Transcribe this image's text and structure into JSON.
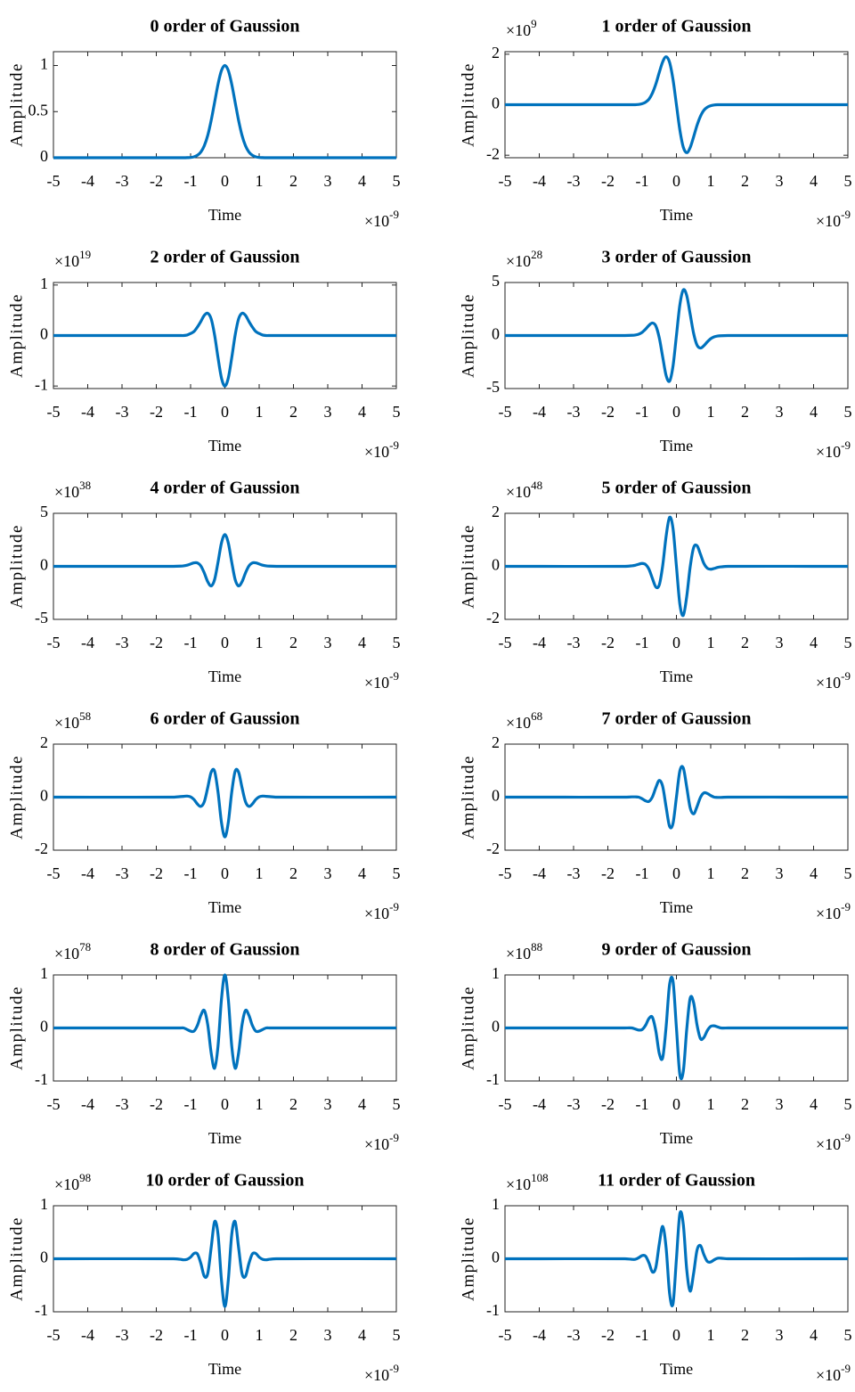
{
  "chart_data": [
    {
      "type": "line",
      "title": "0 order of Gaussion",
      "xlabel": "Time",
      "ylabel": "Amplitude",
      "x_multiplier": "×10",
      "x_exponent": "-9",
      "color": "#0072bd",
      "xlim": [
        -5,
        5
      ],
      "xticks": [
        -5,
        -4,
        -3,
        -2,
        -1,
        0,
        1,
        2,
        3,
        4,
        5
      ],
      "ylim": [
        0,
        1.15
      ],
      "yticks": [
        0,
        0.5,
        1
      ],
      "x": [
        -5,
        -1.5,
        -1.3,
        -1.2,
        -1.1,
        -1,
        -0.9,
        -0.8,
        -0.7,
        -0.6,
        -0.5,
        -0.4,
        -0.3,
        -0.2,
        -0.1,
        0,
        0.1,
        0.2,
        0.3,
        0.4,
        0.5,
        0.6,
        0.7,
        0.8,
        0.9,
        1,
        1.1,
        1.2,
        1.3,
        1.5,
        5
      ],
      "values": [
        0,
        0,
        0,
        0,
        0.001,
        0.003,
        0.01,
        0.027,
        0.062,
        0.13,
        0.242,
        0.404,
        0.6,
        0.797,
        0.945,
        1,
        0.945,
        0.797,
        0.6,
        0.404,
        0.242,
        0.13,
        0.062,
        0.027,
        0.01,
        0.003,
        0.001,
        0,
        0,
        0,
        0
      ]
    },
    {
      "type": "line",
      "title": "1 order of Gaussion",
      "xlabel": "Time",
      "ylabel": "Amplitude",
      "x_multiplier": "×10",
      "x_exponent": "-9",
      "y_multiplier": "×10",
      "y_exponent": "9",
      "color": "#0072bd",
      "xlim": [
        -5,
        5
      ],
      "xticks": [
        -5,
        -4,
        -3,
        -2,
        -1,
        0,
        1,
        2,
        3,
        4,
        5
      ],
      "ylim": [
        -2.1,
        2.1
      ],
      "yticks": [
        -2,
        0,
        2
      ],
      "x": [
        -5,
        -1.5,
        -1.3,
        -1.2,
        -1.1,
        -1,
        -0.9,
        -0.8,
        -0.7,
        -0.6,
        -0.5,
        -0.4,
        -0.3,
        -0.2,
        -0.1,
        0,
        0.1,
        0.2,
        0.3,
        0.4,
        0.5,
        0.6,
        0.7,
        0.8,
        0.9,
        1,
        1.1,
        1.2,
        1.3,
        1.5,
        5
      ],
      "values": [
        0,
        0,
        0,
        0,
        0.01,
        0.04,
        0.1,
        0.22,
        0.46,
        0.82,
        1.28,
        1.7,
        1.9,
        1.68,
        1,
        0,
        -1,
        -1.68,
        -1.9,
        -1.7,
        -1.28,
        -0.82,
        -0.46,
        -0.22,
        -0.1,
        -0.04,
        -0.01,
        0,
        0,
        0,
        0
      ]
    },
    {
      "type": "line",
      "title": "2 order of Gaussion",
      "xlabel": "Time",
      "ylabel": "Amplitude",
      "x_multiplier": "×10",
      "x_exponent": "-9",
      "y_multiplier": "×10",
      "y_exponent": "19",
      "color": "#0072bd",
      "xlim": [
        -5,
        5
      ],
      "xticks": [
        -5,
        -4,
        -3,
        -2,
        -1,
        0,
        1,
        2,
        3,
        4,
        5
      ],
      "ylim": [
        -1.05,
        1.05
      ],
      "yticks": [
        -1,
        0,
        1
      ],
      "x": [
        -5,
        -1.5,
        -1.3,
        -1.2,
        -1.1,
        -1,
        -0.9,
        -0.8,
        -0.7,
        -0.6,
        -0.5,
        -0.4,
        -0.3,
        -0.2,
        -0.1,
        0,
        0.1,
        0.2,
        0.3,
        0.4,
        0.5,
        0.6,
        0.7,
        0.8,
        0.9,
        1,
        1.1,
        1.2,
        1.3,
        1.5,
        5
      ],
      "values": [
        0,
        0,
        0,
        0,
        0.01,
        0.04,
        0.08,
        0.17,
        0.28,
        0.4,
        0.44,
        0.33,
        0.01,
        -0.44,
        -0.84,
        -1,
        -0.84,
        -0.44,
        0.01,
        0.33,
        0.44,
        0.4,
        0.28,
        0.17,
        0.08,
        0.04,
        0.01,
        0,
        0,
        0,
        0
      ]
    },
    {
      "type": "line",
      "title": "3 order of Gaussion",
      "xlabel": "Time",
      "ylabel": "Amplitude",
      "x_multiplier": "×10",
      "x_exponent": "-9",
      "y_multiplier": "×10",
      "y_exponent": "28",
      "color": "#0072bd",
      "xlim": [
        -5,
        5
      ],
      "xticks": [
        -5,
        -4,
        -3,
        -2,
        -1,
        0,
        1,
        2,
        3,
        4,
        5
      ],
      "ylim": [
        -5,
        5
      ],
      "yticks": [
        -5,
        0,
        5
      ],
      "x": [
        -5,
        -1.5,
        -1.3,
        -1.2,
        -1.1,
        -1,
        -0.9,
        -0.8,
        -0.7,
        -0.6,
        -0.5,
        -0.4,
        -0.3,
        -0.2,
        -0.1,
        0,
        0.1,
        0.2,
        0.3,
        0.4,
        0.5,
        0.6,
        0.7,
        0.8,
        0.9,
        1,
        1.1,
        1.2,
        1.3,
        1.5,
        5
      ],
      "values": [
        0,
        0,
        0.02,
        0.05,
        0.13,
        0.3,
        0.6,
        0.96,
        1.18,
        0.9,
        -0.22,
        -2.03,
        -3.78,
        -4.3,
        -2.89,
        0,
        2.89,
        4.3,
        3.78,
        2.03,
        0.22,
        -0.9,
        -1.18,
        -0.96,
        -0.6,
        -0.3,
        -0.13,
        -0.05,
        -0.02,
        0,
        0
      ]
    },
    {
      "type": "line",
      "title": "4 order of Gaussion",
      "xlabel": "Time",
      "ylabel": "Amplitude",
      "x_multiplier": "×10",
      "x_exponent": "-9",
      "y_multiplier": "×10",
      "y_exponent": "38",
      "color": "#0072bd",
      "xlim": [
        -5,
        5
      ],
      "xticks": [
        -5,
        -4,
        -3,
        -2,
        -1,
        0,
        1,
        2,
        3,
        4,
        5
      ],
      "ylim": [
        -5,
        5
      ],
      "yticks": [
        -5,
        0,
        5
      ],
      "x": [
        -5,
        -1.5,
        -1.3,
        -1.2,
        -1.1,
        -1,
        -0.9,
        -0.8,
        -0.7,
        -0.6,
        -0.5,
        -0.4,
        -0.3,
        -0.2,
        -0.1,
        0,
        0.1,
        0.2,
        0.3,
        0.4,
        0.5,
        0.6,
        0.7,
        0.8,
        0.9,
        1,
        1.1,
        1.2,
        1.3,
        1.5,
        5
      ],
      "values": [
        0,
        0,
        0.02,
        0.05,
        0.11,
        0.22,
        0.33,
        0.32,
        0.03,
        -0.63,
        -1.45,
        -1.85,
        -1.25,
        0.39,
        2.2,
        3,
        2.2,
        0.39,
        -1.25,
        -1.85,
        -1.45,
        -0.63,
        0.03,
        0.32,
        0.33,
        0.22,
        0.11,
        0.05,
        0.02,
        0,
        0
      ]
    },
    {
      "type": "line",
      "title": "5 order of Gaussion",
      "xlabel": "Time",
      "ylabel": "Amplitude",
      "x_multiplier": "×10",
      "x_exponent": "-9",
      "y_multiplier": "×10",
      "y_exponent": "48",
      "color": "#0072bd",
      "xlim": [
        -5,
        5
      ],
      "xticks": [
        -5,
        -4,
        -3,
        -2,
        -1,
        0,
        1,
        2,
        3,
        4,
        5
      ],
      "ylim": [
        -2,
        2
      ],
      "yticks": [
        -2,
        0,
        2
      ],
      "x": [
        -5,
        -1.5,
        -1.3,
        -1.2,
        -1.1,
        -1,
        -0.9,
        -0.8,
        -0.7,
        -0.6,
        -0.5,
        -0.4,
        -0.3,
        -0.2,
        -0.1,
        0,
        0.1,
        0.2,
        0.3,
        0.4,
        0.5,
        0.6,
        0.7,
        0.8,
        0.9,
        1,
        1.1,
        1.2,
        1.3,
        1.5,
        5
      ],
      "values": [
        0,
        0,
        0.02,
        0.04,
        0.08,
        0.11,
        0.07,
        -0.11,
        -0.46,
        -0.78,
        -0.7,
        0.03,
        1.14,
        1.85,
        1.43,
        0,
        -1.43,
        -1.85,
        -1.14,
        -0.03,
        0.7,
        0.78,
        0.46,
        0.11,
        -0.07,
        -0.11,
        -0.08,
        -0.04,
        -0.02,
        0,
        0
      ]
    },
    {
      "type": "line",
      "title": "6 order of Gaussion",
      "xlabel": "Time",
      "ylabel": "Amplitude",
      "x_multiplier": "×10",
      "x_exponent": "-9",
      "y_multiplier": "×10",
      "y_exponent": "58",
      "color": "#0072bd",
      "xlim": [
        -5,
        5
      ],
      "xticks": [
        -5,
        -4,
        -3,
        -2,
        -1,
        0,
        1,
        2,
        3,
        4,
        5
      ],
      "ylim": [
        -2,
        2
      ],
      "yticks": [
        -2,
        0,
        2
      ],
      "x": [
        -5,
        -1.5,
        -1.3,
        -1.2,
        -1.1,
        -1,
        -0.9,
        -0.8,
        -0.7,
        -0.6,
        -0.5,
        -0.4,
        -0.3,
        -0.2,
        -0.1,
        0,
        0.1,
        0.2,
        0.3,
        0.4,
        0.5,
        0.6,
        0.7,
        0.8,
        0.9,
        1,
        1.1,
        1.2,
        1.3,
        1.5,
        5
      ],
      "values": [
        0,
        0,
        0.02,
        0.03,
        0.04,
        0.01,
        -0.09,
        -0.26,
        -0.35,
        -0.17,
        0.36,
        0.94,
        0.98,
        0.19,
        -0.95,
        -1.5,
        -0.95,
        0.19,
        0.98,
        0.94,
        0.36,
        -0.17,
        -0.35,
        -0.26,
        -0.09,
        0.01,
        0.04,
        0.03,
        0.02,
        0,
        0
      ]
    },
    {
      "type": "line",
      "title": "7 order of Gaussion",
      "xlabel": "Time",
      "ylabel": "Amplitude",
      "x_multiplier": "×10",
      "x_exponent": "-9",
      "y_multiplier": "×10",
      "y_exponent": "68",
      "color": "#0072bd",
      "xlim": [
        -5,
        5
      ],
      "xticks": [
        -5,
        -4,
        -3,
        -2,
        -1,
        0,
        1,
        2,
        3,
        4,
        5
      ],
      "ylim": [
        -2,
        2
      ],
      "yticks": [
        -2,
        0,
        2
      ],
      "x": [
        -5,
        -1.5,
        -1.3,
        -1.2,
        -1.1,
        -1,
        -0.9,
        -0.8,
        -0.7,
        -0.6,
        -0.5,
        -0.4,
        -0.3,
        -0.2,
        -0.1,
        0,
        0.1,
        0.2,
        0.3,
        0.4,
        0.5,
        0.6,
        0.7,
        0.8,
        0.9,
        1,
        1.1,
        1.2,
        1.3,
        1.5,
        5
      ],
      "values": [
        0,
        0,
        0.01,
        0.01,
        0,
        -0.06,
        -0.14,
        -0.16,
        0.01,
        0.36,
        0.63,
        0.4,
        -0.38,
        -1.1,
        -0.99,
        0,
        0.99,
        1.1,
        0.38,
        -0.4,
        -0.63,
        -0.36,
        -0.01,
        0.16,
        0.14,
        0.06,
        0,
        -0.01,
        -0.01,
        0,
        0
      ]
    },
    {
      "type": "line",
      "title": "8 order of Gaussion",
      "xlabel": "Time",
      "ylabel": "Amplitude",
      "x_multiplier": "×10",
      "x_exponent": "-9",
      "y_multiplier": "×10",
      "y_exponent": "78",
      "color": "#0072bd",
      "xlim": [
        -5,
        5
      ],
      "xticks": [
        -5,
        -4,
        -3,
        -2,
        -1,
        0,
        1,
        2,
        3,
        4,
        5
      ],
      "ylim": [
        -1,
        1
      ],
      "yticks": [
        -1,
        0,
        1
      ],
      "x": [
        -5,
        -1.5,
        -1.3,
        -1.2,
        -1.1,
        -1,
        -0.9,
        -0.8,
        -0.7,
        -0.6,
        -0.5,
        -0.4,
        -0.3,
        -0.2,
        -0.1,
        0,
        0.1,
        0.2,
        0.3,
        0.4,
        0.5,
        0.6,
        0.7,
        0.8,
        0.9,
        1,
        1.1,
        1.2,
        1.3,
        1.5,
        5
      ],
      "values": [
        0,
        0,
        0,
        0,
        -0.03,
        -0.06,
        -0.06,
        0.05,
        0.24,
        0.33,
        0.06,
        -0.47,
        -0.76,
        -0.34,
        0.54,
        1,
        0.54,
        -0.34,
        -0.76,
        -0.47,
        0.06,
        0.33,
        0.24,
        0.05,
        -0.06,
        -0.06,
        -0.03,
        0,
        0,
        0,
        0
      ]
    },
    {
      "type": "line",
      "title": "9 order of Gaussion",
      "xlabel": "Time",
      "ylabel": "Amplitude",
      "x_multiplier": "×10",
      "x_exponent": "-9",
      "y_multiplier": "×10",
      "y_exponent": "88",
      "color": "#0072bd",
      "xlim": [
        -5,
        5
      ],
      "xticks": [
        -5,
        -4,
        -3,
        -2,
        -1,
        0,
        1,
        2,
        3,
        4,
        5
      ],
      "ylim": [
        -1,
        1
      ],
      "yticks": [
        -1,
        0,
        1
      ],
      "x": [
        -5,
        -1.5,
        -1.3,
        -1.2,
        -1.1,
        -1,
        -0.9,
        -0.8,
        -0.7,
        -0.6,
        -0.5,
        -0.4,
        -0.3,
        -0.2,
        -0.1,
        0,
        0.1,
        0.2,
        0.3,
        0.4,
        0.5,
        0.6,
        0.7,
        0.8,
        0.9,
        1,
        1.1,
        1.2,
        1.3,
        1.5,
        5
      ],
      "values": [
        0,
        0,
        0,
        -0.02,
        -0.04,
        -0.03,
        0.05,
        0.18,
        0.2,
        -0.06,
        -0.48,
        -0.56,
        0.03,
        0.82,
        0.88,
        0,
        -0.88,
        -0.82,
        -0.03,
        0.56,
        0.48,
        0.06,
        -0.2,
        -0.18,
        -0.05,
        0.03,
        0.04,
        0.02,
        0,
        0,
        0
      ]
    },
    {
      "type": "line",
      "title": "10 order of Gaussion",
      "xlabel": "Time",
      "ylabel": "Amplitude",
      "x_multiplier": "×10",
      "x_exponent": "-9",
      "y_multiplier": "×10",
      "y_exponent": "98",
      "color": "#0072bd",
      "xlim": [
        -5,
        5
      ],
      "xticks": [
        -5,
        -4,
        -3,
        -2,
        -1,
        0,
        1,
        2,
        3,
        4,
        5
      ],
      "ylim": [
        -1,
        1
      ],
      "yticks": [
        -1,
        0,
        1
      ],
      "x": [
        -5,
        -1.5,
        -1.3,
        -1.2,
        -1.1,
        -1,
        -0.9,
        -0.8,
        -0.7,
        -0.6,
        -0.5,
        -0.4,
        -0.3,
        -0.2,
        -0.1,
        0,
        0.1,
        0.2,
        0.3,
        0.4,
        0.5,
        0.6,
        0.7,
        0.8,
        0.9,
        1,
        1.1,
        1.2,
        1.3,
        1.5,
        5
      ],
      "values": [
        0,
        0,
        -0.01,
        -0.02,
        -0.01,
        0.03,
        0.1,
        0.09,
        -0.09,
        -0.33,
        -0.28,
        0.21,
        0.7,
        0.46,
        -0.4,
        -0.9,
        -0.4,
        0.46,
        0.7,
        0.21,
        -0.28,
        -0.33,
        -0.09,
        0.09,
        0.1,
        0.03,
        -0.01,
        -0.02,
        -0.01,
        0,
        0
      ]
    },
    {
      "type": "line",
      "title": "11 order of Gaussion",
      "xlabel": "Time",
      "ylabel": "Amplitude",
      "x_multiplier": "×10",
      "x_exponent": "-9",
      "y_multiplier": "×10",
      "y_exponent": "108",
      "color": "#0072bd",
      "xlim": [
        -5,
        5
      ],
      "xticks": [
        -5,
        -4,
        -3,
        -2,
        -1,
        0,
        1,
        2,
        3,
        4,
        5
      ],
      "ylim": [
        -1,
        1
      ],
      "yticks": [
        -1,
        0,
        1
      ],
      "x": [
        -5,
        -1.5,
        -1.3,
        -1.2,
        -1.1,
        -1,
        -0.9,
        -0.8,
        -0.7,
        -0.6,
        -0.5,
        -0.4,
        -0.3,
        -0.2,
        -0.1,
        0,
        0.1,
        0.2,
        0.3,
        0.4,
        0.5,
        0.6,
        0.7,
        0.8,
        0.9,
        1,
        1.1,
        1.2,
        1.3,
        1.5,
        5
      ],
      "values": [
        0,
        0,
        -0.01,
        -0.01,
        0.02,
        0.06,
        0.05,
        -0.08,
        -0.25,
        -0.16,
        0.28,
        0.61,
        0.2,
        -0.65,
        -0.85,
        0,
        0.85,
        0.65,
        -0.2,
        -0.61,
        -0.28,
        0.16,
        0.25,
        0.08,
        -0.05,
        -0.06,
        -0.02,
        0.01,
        0.01,
        0,
        0
      ]
    }
  ]
}
